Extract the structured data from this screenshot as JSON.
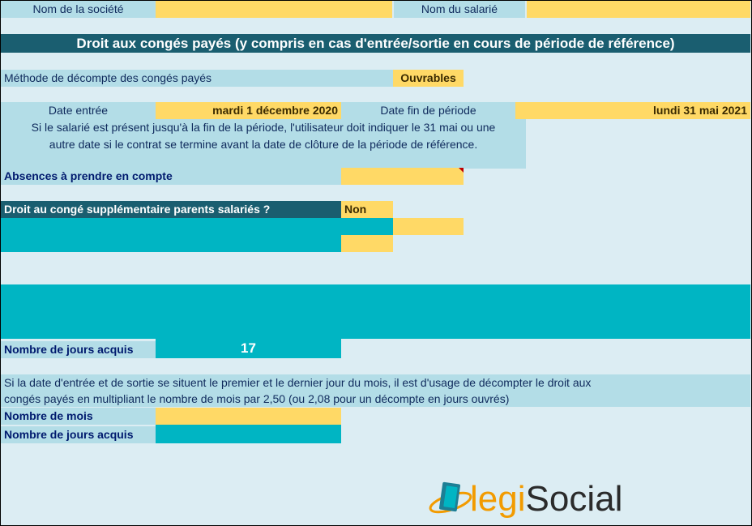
{
  "header": {
    "company_label": "Nom de la société",
    "employee_label": "Nom du salarié",
    "title": "Droit aux congés payés (y compris en cas d'entrée/sortie en cours de période de référence)"
  },
  "method": {
    "label": "Méthode de décompte des congés payés",
    "value": "Ouvrables"
  },
  "dates": {
    "entry_label": "Date entrée",
    "entry_value": "mardi 1 décembre 2020",
    "end_label": "Date fin de période",
    "end_value": "lundi 31 mai 2021",
    "note_line1": "Si le salarié est présent jusqu'à la fin de la période, l'utilisateur doit indiquer le 31 mai ou une",
    "note_line2": "autre date si le contrat se termine avant la date de clôture de la période de référence."
  },
  "absences": {
    "label": "Absences à prendre en compte"
  },
  "parents": {
    "label": "Droit au congé supplémentaire parents salariés ?",
    "value": "Non"
  },
  "result1": {
    "label": "Nombre de jours acquis",
    "value": "17"
  },
  "months_note": {
    "line1": "Si la date d'entrée et de sortie se situent le premier et le dernier jour du mois, il est d'usage de décompter le droit aux",
    "line2": "congés payés en multipliant le nombre de mois par 2,50 (ou 2,08 pour un décompte en jours ouvrés)"
  },
  "months": {
    "label": "Nombre de mois"
  },
  "result2": {
    "label": "Nombre de jours acquis"
  },
  "logo": {
    "part1": "legi",
    "part2": "Social"
  },
  "colors": {
    "light_blue": "#b3dde7",
    "yellow": "#ffd966",
    "teal": "#00b5c3",
    "dark_teal": "#1a5e70",
    "navy": "#001a6e"
  }
}
